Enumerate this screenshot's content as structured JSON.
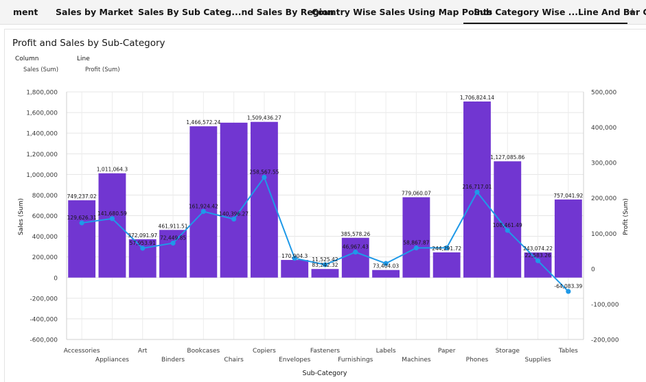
{
  "tabs": [
    {
      "label": "ment",
      "active": false
    },
    {
      "label": "Sales by Market",
      "active": false
    },
    {
      "label": "Sales By Sub Categ...nd Sales By Region",
      "active": false
    },
    {
      "label": "Country Wise Sales Using Map Points",
      "active": false
    },
    {
      "label": "Sub Category Wise ...Line And Bar Chart",
      "active": true
    }
  ],
  "add_tab_label": "+",
  "legend": {
    "column_label": "Column",
    "column_series": "Sales (Sum)",
    "line_label": "Line",
    "line_series": "Profit (Sum)"
  },
  "colors": {
    "bar": "#7136d1",
    "line": "#1f99e8",
    "grid": "#e5e5e5",
    "text": "#161616"
  },
  "chart_data": {
    "type": "bar",
    "title": "Profit and Sales by Sub-Category",
    "xlabel": "Sub-Category",
    "ylabel": "Sales (Sum)",
    "y2label": "Profit (Sum)",
    "ylim": [
      -600000,
      1800000
    ],
    "y2lim": [
      -200000,
      500000
    ],
    "yticks": [
      -600000,
      -400000,
      -200000,
      0,
      200000,
      400000,
      600000,
      800000,
      1000000,
      1200000,
      1400000,
      1600000,
      1800000
    ],
    "ytick_labels": [
      "-600,000",
      "-400,000",
      "-200,000",
      "0",
      "200,000",
      "400,000",
      "600,000",
      "800,000",
      "1,000,000",
      "1,200,000",
      "1,400,000",
      "1,600,000",
      "1,800,000"
    ],
    "y2ticks": [
      -200000,
      -100000,
      0,
      100000,
      200000,
      300000,
      400000,
      500000
    ],
    "y2tick_labels": [
      "-200,000",
      "-100,000",
      "0",
      "100,000",
      "200,000",
      "300,000",
      "400,000",
      "500,000"
    ],
    "grid": true,
    "categories": [
      "Accessories",
      "Appliances",
      "Art",
      "Binders",
      "Bookcases",
      "Chairs",
      "Copiers",
      "Envelopes",
      "Fasteners",
      "Furnishings",
      "Labels",
      "Machines",
      "Paper",
      "Phones",
      "Storage",
      "Supplies",
      "Tables"
    ],
    "series": [
      {
        "name": "Sales (Sum)",
        "type": "bar",
        "axis": "left",
        "values": [
          749237.02,
          1011064.3,
          372091.97,
          461911.51,
          1466572.24,
          1501681.76,
          1509436.27,
          170904.3,
          83242.32,
          385578.26,
          73404.03,
          779060.07,
          244291.72,
          1706824.14,
          1127085.86,
          243074.22,
          757041.92
        ],
        "labels": [
          "749,237.02",
          "1,011,064.3",
          "372,091.97",
          "461,911.51",
          "1,466,572.24",
          "",
          "1,509,436.27",
          "170,904.3",
          "83,242.32",
          "385,578.26",
          "73,404.03",
          "779,060.07",
          "244,291.72",
          "1,706,824.14",
          "1,127,085.86",
          "243,074.22",
          "757,041.92"
        ]
      },
      {
        "name": "Profit (Sum)",
        "type": "line",
        "axis": "right",
        "values": [
          129626.31,
          141680.59,
          57953.91,
          72449.85,
          161924.42,
          140396.27,
          258567.55,
          29601.12,
          11525.42,
          46967.43,
          15010.51,
          58867.87,
          59207.68,
          216717.01,
          108461.49,
          22583.26,
          -64083.39
        ],
        "labels": [
          "129,626.31",
          "141,680.59",
          "57,953.91",
          "72,449.85",
          "161,924.42",
          "140,396.27",
          "258,567.55",
          "",
          "11,525.42",
          "46,967.43",
          "",
          "58,867.87",
          "",
          "216,717.01",
          "108,461.49",
          "22,583.26",
          "-64,083.39"
        ]
      }
    ]
  }
}
